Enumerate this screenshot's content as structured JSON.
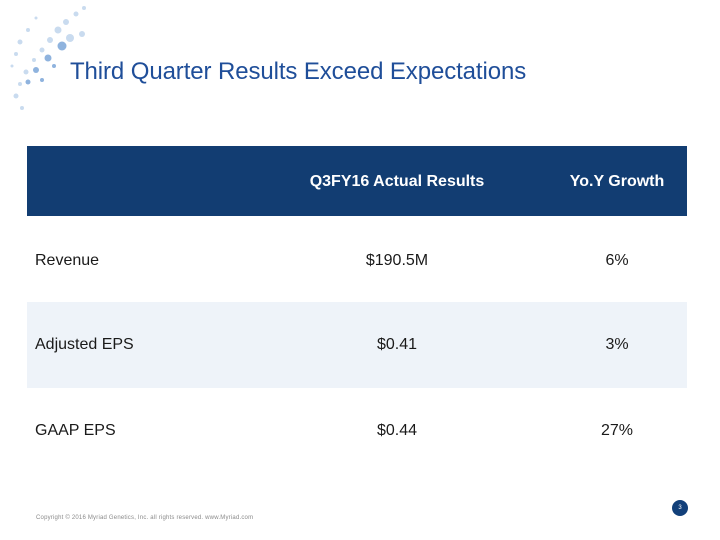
{
  "slide": {
    "title": "Third Quarter Results Exceed Expectations",
    "colors": {
      "title": "#1f4e99",
      "header_bg": "#123d72",
      "alt_row_bg": "#eef3f9"
    }
  },
  "table": {
    "headers": {
      "metric": "",
      "actual": "Q3FY16 Actual Results",
      "growth": "Yo.Y Growth"
    },
    "rows": [
      {
        "metric": "Revenue",
        "actual": "$190.5M",
        "growth": "6%"
      },
      {
        "metric": "Adjusted EPS",
        "actual": "$0.41",
        "growth": "3%"
      },
      {
        "metric": "GAAP EPS",
        "actual": "$0.44",
        "growth": "27%"
      }
    ]
  },
  "footer": {
    "copyright": "Copyright © 2016 Myriad Genetics, Inc. all rights reserved. www.Myriad.com",
    "page_number": "3"
  }
}
